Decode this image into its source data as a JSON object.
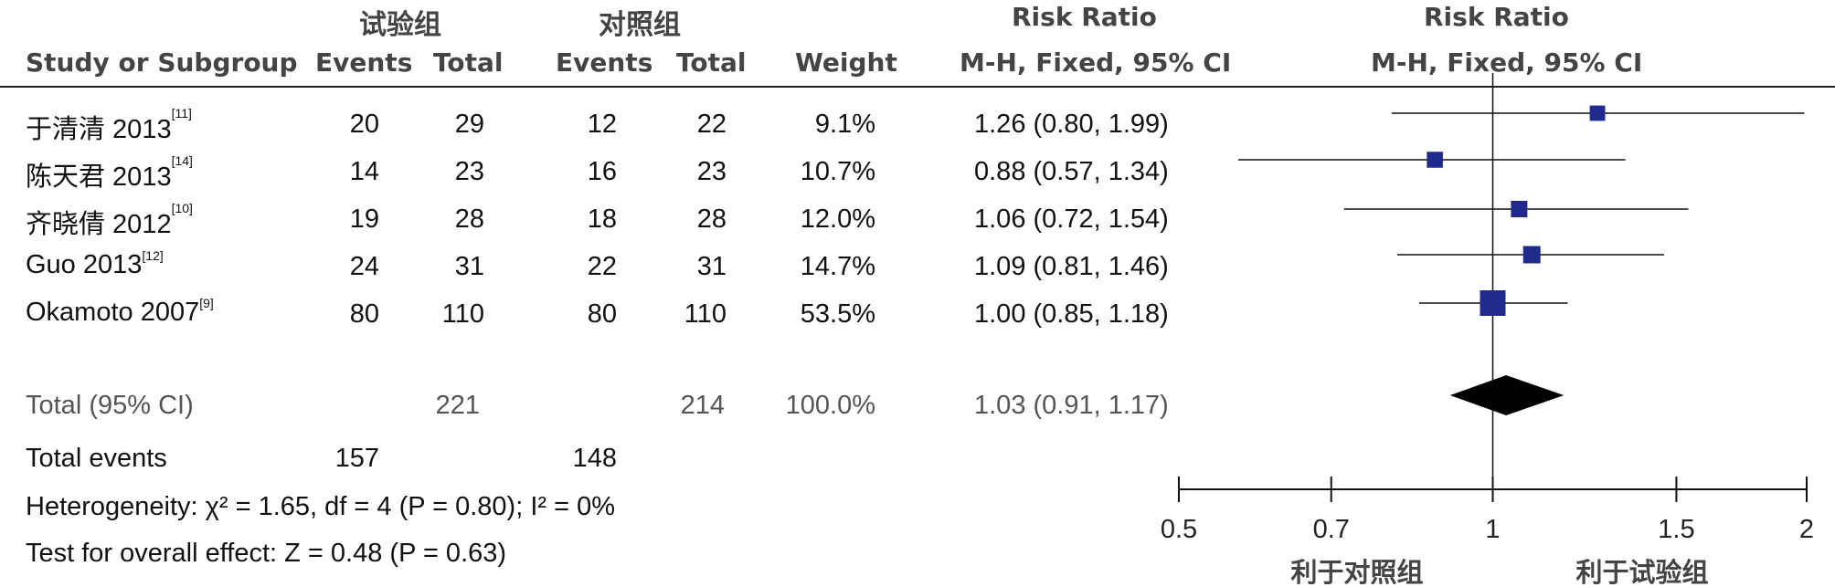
{
  "table": {
    "group_headers": {
      "experimental": "试验组",
      "control": "对照组",
      "risk_ratio_left": "Risk Ratio",
      "risk_ratio_right": "Risk Ratio"
    },
    "col_headers": {
      "study": "Study or Subgroup",
      "events1": "Events",
      "total1": "Total",
      "events2": "Events",
      "total2": "Total",
      "weight": "Weight",
      "method_left": "M-H, Fixed, 95% CI",
      "method_right": "M-H, Fixed, 95% CI"
    },
    "studies": [
      {
        "name": "于清清 2013",
        "ref": "[11]",
        "events1": "20",
        "total1": "29",
        "events2": "12",
        "total2": "22",
        "weight": "9.1%",
        "rr": "1.26 (0.80, 1.99)"
      },
      {
        "name": "陈天君 2013",
        "ref": "[14]",
        "events1": "14",
        "total1": "23",
        "events2": "16",
        "total2": "23",
        "weight": "10.7%",
        "rr": "0.88 (0.57, 1.34)"
      },
      {
        "name": "齐晓倩 2012",
        "ref": "[10]",
        "events1": "19",
        "total1": "28",
        "events2": "18",
        "total2": "28",
        "weight": "12.0%",
        "rr": "1.06 (0.72, 1.54)"
      },
      {
        "name": "Guo 2013",
        "ref": "[12]",
        "events1": "24",
        "total1": "31",
        "events2": "22",
        "total2": "31",
        "weight": "14.7%",
        "rr": "1.09 (0.81, 1.46)"
      },
      {
        "name": "Okamoto 2007",
        "ref": "[9]",
        "events1": "80",
        "total1": "110",
        "events2": "80",
        "total2": "110",
        "weight": "53.5%",
        "rr": "1.00 (0.85, 1.18)"
      }
    ],
    "total": {
      "label": "Total (95% CI)",
      "total1": "221",
      "total2": "214",
      "weight": "100.0%",
      "rr": "1.03 (0.91, 1.17)"
    },
    "total_events": {
      "label": "Total events",
      "events1": "157",
      "events2": "148"
    },
    "heterogeneity": "Heterogeneity: χ² = 1.65, df = 4 (P = 0.80); I² = 0%",
    "overall_effect": "Test for overall effect: Z = 0.48 (P = 0.63)"
  },
  "chart_data": {
    "type": "scatter",
    "subtype": "forest",
    "xscale": "log",
    "xlim": [
      0.5,
      2
    ],
    "xticks": [
      0.5,
      0.7,
      1,
      1.5,
      2
    ],
    "xtick_labels": [
      "0.5",
      "0.7",
      "1",
      "1.5",
      "2"
    ],
    "reference_line": 1,
    "left_label": "利于对照组",
    "right_label": "利于试验组",
    "marker_color": "#1f2a8c",
    "diamond_color": "#000000",
    "studies": [
      {
        "label": "于清清 2013",
        "rr": 1.26,
        "lo": 0.8,
        "hi": 1.99,
        "weight": 9.1
      },
      {
        "label": "陈天君 2013",
        "rr": 0.88,
        "lo": 0.57,
        "hi": 1.34,
        "weight": 10.7
      },
      {
        "label": "齐晓倩 2012",
        "rr": 1.06,
        "lo": 0.72,
        "hi": 1.54,
        "weight": 12.0
      },
      {
        "label": "Guo 2013",
        "rr": 1.09,
        "lo": 0.81,
        "hi": 1.46,
        "weight": 14.7
      },
      {
        "label": "Okamoto 2007",
        "rr": 1.0,
        "lo": 0.85,
        "hi": 1.18,
        "weight": 53.5
      }
    ],
    "pooled": {
      "rr": 1.03,
      "lo": 0.91,
      "hi": 1.17
    }
  }
}
